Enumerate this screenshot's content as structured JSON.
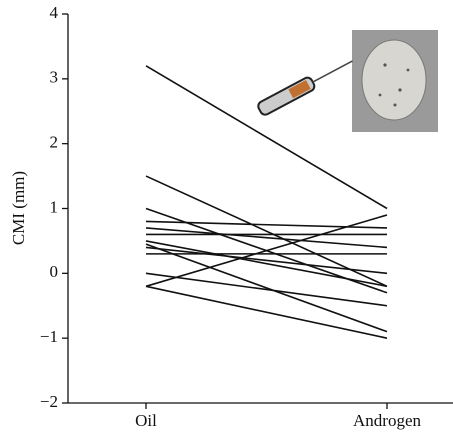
{
  "chart_data": {
    "type": "slope",
    "y_label": "CMI (mm)",
    "categories": [
      "Oil",
      "Androgen"
    ],
    "series": [
      {
        "color": "#111111",
        "values": [
          3.2,
          1.0
        ]
      },
      {
        "color": "#111111",
        "values": [
          1.5,
          -0.2
        ]
      },
      {
        "color": "#111111",
        "values": [
          1.0,
          -0.3
        ]
      },
      {
        "color": "#111111",
        "values": [
          0.8,
          0.7
        ]
      },
      {
        "color": "#111111",
        "values": [
          0.7,
          0.4
        ]
      },
      {
        "color": "#111111",
        "values": [
          0.6,
          0.6
        ]
      },
      {
        "color": "#111111",
        "values": [
          0.5,
          -0.2
        ]
      },
      {
        "color": "#111111",
        "values": [
          0.45,
          -0.9
        ]
      },
      {
        "color": "#111111",
        "values": [
          0.4,
          0.0
        ]
      },
      {
        "color": "#111111",
        "values": [
          0.3,
          0.3
        ]
      },
      {
        "color": "#111111",
        "values": [
          0.0,
          -0.5
        ]
      },
      {
        "color": "#111111",
        "values": [
          -0.2,
          0.9
        ]
      },
      {
        "color": "#111111",
        "values": [
          -0.2,
          -1.0
        ]
      }
    ],
    "ylim": [
      -2,
      4
    ],
    "yticks": [
      {
        "value": -2,
        "label": "−2"
      },
      {
        "value": -1,
        "label": "−1"
      },
      0,
      1,
      2,
      3,
      4
    ]
  }
}
